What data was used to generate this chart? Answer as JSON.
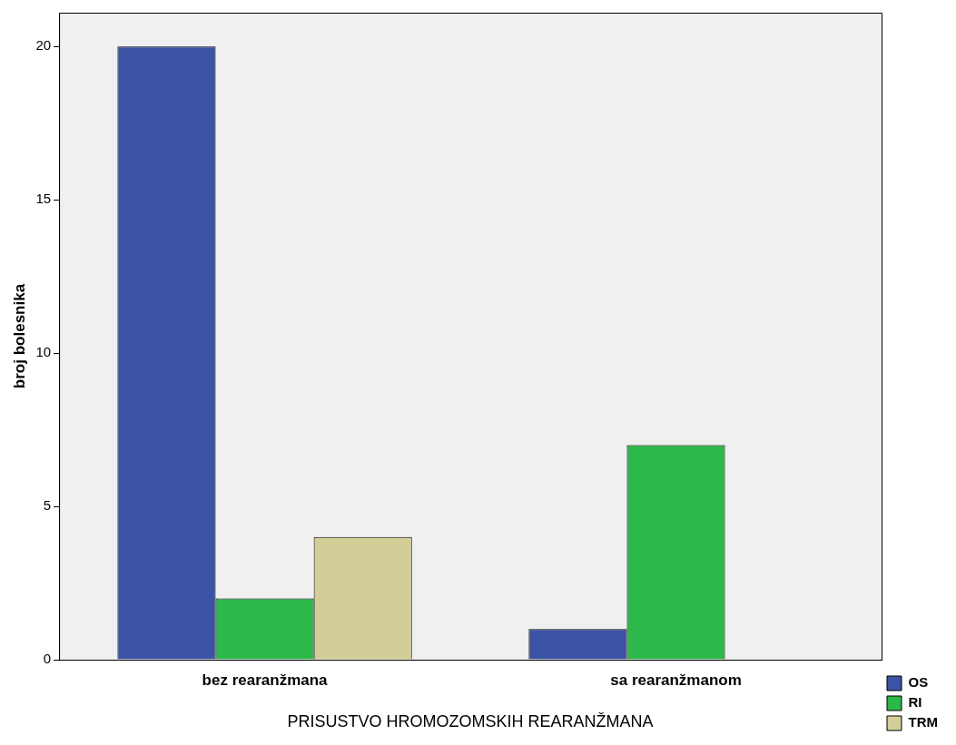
{
  "chart_data": {
    "type": "bar",
    "xlabel": "PRISUSTVO HROMOZOMSKIH REARANŽMANA",
    "ylabel": "broj bolesnika",
    "categories": [
      "bez rearanžmana",
      "sa rearanžmanom"
    ],
    "series": [
      {
        "name": "OS",
        "color": "#3b53a4",
        "values": [
          20,
          1
        ]
      },
      {
        "name": "RI",
        "color": "#2db84a",
        "values": [
          2,
          7
        ]
      },
      {
        "name": "TRM",
        "color": "#d3ce97",
        "values": [
          4,
          0
        ]
      }
    ],
    "ylim": [
      0,
      21.1
    ],
    "yticks": [
      0,
      5,
      10,
      15,
      20
    ],
    "grid": false,
    "legend": "right"
  }
}
